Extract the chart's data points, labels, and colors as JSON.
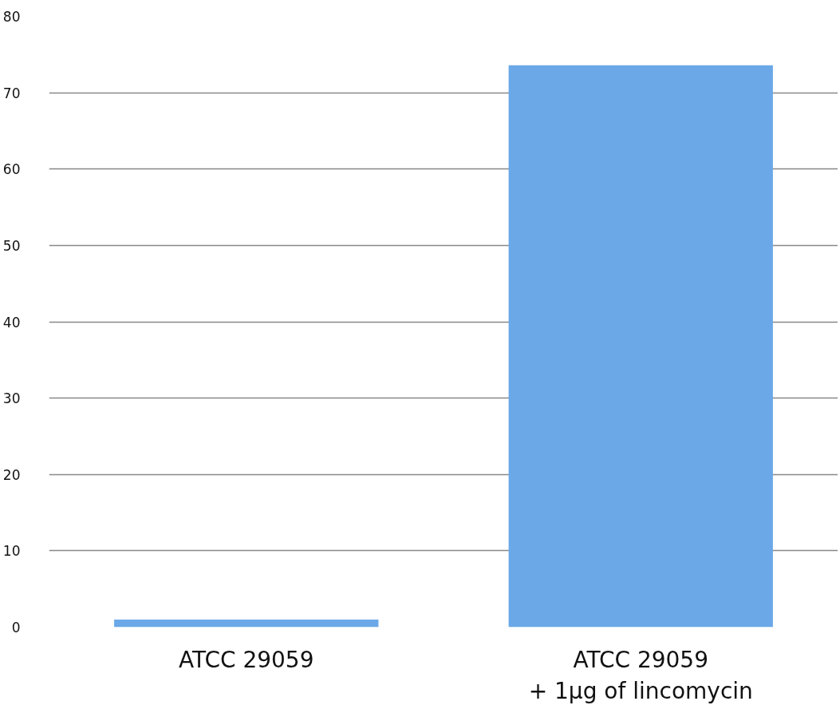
{
  "chart_data": {
    "type": "bar",
    "categories": [
      "ATCC 29059",
      "ATCC 29059\n+ 1µg of lincomycin"
    ],
    "values": [
      1,
      73.6
    ],
    "color": "#6aa8e8",
    "ylim": [
      0,
      80
    ],
    "yticks": [
      0,
      10,
      20,
      30,
      40,
      50,
      60,
      70,
      80
    ],
    "grid": "y"
  }
}
